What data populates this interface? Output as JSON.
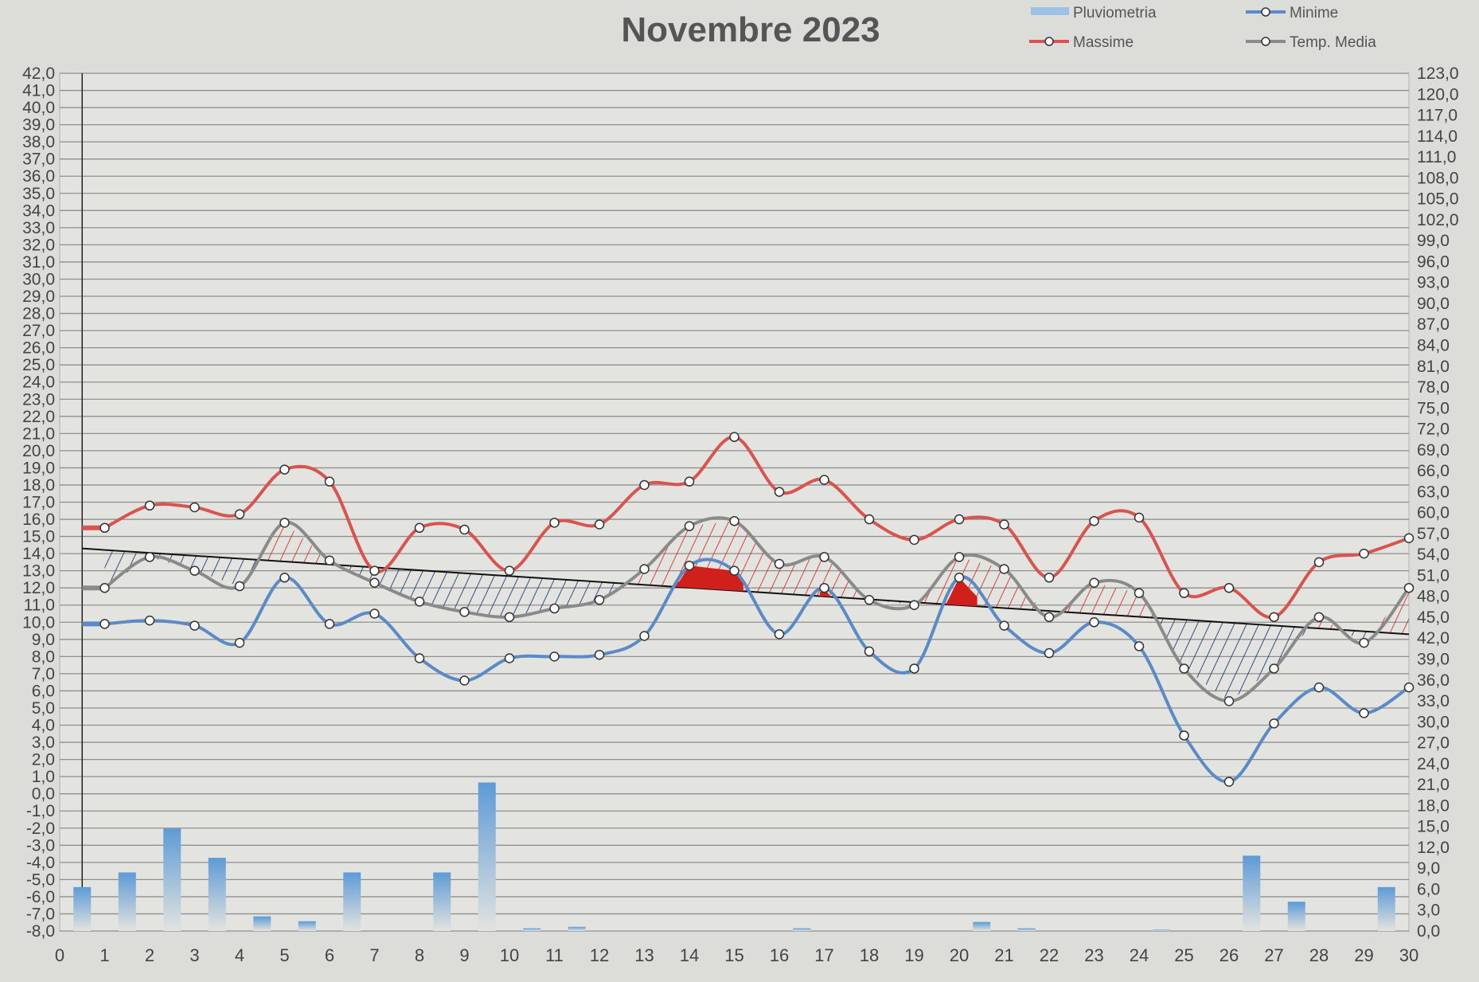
{
  "chart_data": {
    "type": "line",
    "title": "Novembre 2023",
    "x": [
      1,
      2,
      3,
      4,
      5,
      6,
      7,
      8,
      9,
      10,
      11,
      12,
      13,
      14,
      15,
      16,
      17,
      18,
      19,
      20,
      21,
      22,
      23,
      24,
      25,
      26,
      27,
      28,
      29,
      30
    ],
    "xlim": [
      0,
      30
    ],
    "x_ticks": [
      "0",
      "1",
      "2",
      "3",
      "4",
      "5",
      "6",
      "7",
      "8",
      "9",
      "10",
      "11",
      "12",
      "13",
      "14",
      "15",
      "16",
      "17",
      "18",
      "19",
      "20",
      "21",
      "22",
      "23",
      "24",
      "25",
      "26",
      "27",
      "28",
      "29",
      "30"
    ],
    "ylim": [
      -8,
      42
    ],
    "y_ticks": [
      "42,0",
      "41,0",
      "40,0",
      "39,0",
      "38,0",
      "37,0",
      "36,0",
      "35,0",
      "34,0",
      "33,0",
      "32,0",
      "31,0",
      "30,0",
      "29,0",
      "28,0",
      "27,0",
      "26,0",
      "25,0",
      "24,0",
      "23,0",
      "22,0",
      "21,0",
      "20,0",
      "19,0",
      "18,0",
      "17,0",
      "16,0",
      "15,0",
      "14,0",
      "13,0",
      "12,0",
      "11,0",
      "10,0",
      "9,0",
      "8,0",
      "7,0",
      "6,0",
      "5,0",
      "4,0",
      "3,0",
      "2,0",
      "1,0",
      "0,0",
      "-1,0",
      "-2,0",
      "-3,0",
      "-4,0",
      "-5,0",
      "-6,0",
      "-7,0",
      "-8,0"
    ],
    "y2lim": [
      0,
      123
    ],
    "y2_ticks": [
      "123,0",
      "120,0",
      "117,0",
      "114,0",
      "111,0",
      "108,0",
      "105,0",
      "102,0",
      "99,0",
      "96,0",
      "93,0",
      "90,0",
      "87,0",
      "84,0",
      "81,0",
      "78,0",
      "75,0",
      "72,0",
      "69,0",
      "66,0",
      "63,0",
      "60,0",
      "57,0",
      "54,0",
      "51,0",
      "48,0",
      "45,0",
      "42,0",
      "39,0",
      "36,0",
      "33,0",
      "30,0",
      "27,0",
      "24,0",
      "21,0",
      "18,0",
      "15,0",
      "12,0",
      "9,0",
      "6,0",
      "3,0",
      "0,0"
    ],
    "grid": true,
    "legend_position": "top-right",
    "series": [
      {
        "name": "Massime",
        "color": "#d9534f",
        "axis": "left",
        "values": [
          15.5,
          16.8,
          16.7,
          16.3,
          18.9,
          18.2,
          13.0,
          15.5,
          15.4,
          13.0,
          15.8,
          15.7,
          18.0,
          18.2,
          20.8,
          17.6,
          18.3,
          16.0,
          14.8,
          16.0,
          15.7,
          12.6,
          15.9,
          16.1,
          11.7,
          12.0,
          10.3,
          13.5,
          14.0,
          14.9
        ]
      },
      {
        "name": "Minime",
        "color": "#5b8bc7",
        "axis": "left",
        "values": [
          9.9,
          10.1,
          9.8,
          8.8,
          12.6,
          9.9,
          10.5,
          7.9,
          6.6,
          7.9,
          8.0,
          8.1,
          9.2,
          13.3,
          13.0,
          9.3,
          12.0,
          8.3,
          7.3,
          12.6,
          9.8,
          8.2,
          10.0,
          8.6,
          3.4,
          0.7,
          4.1,
          6.2,
          4.7,
          6.2
        ]
      },
      {
        "name": "Temp. Media",
        "color": "#8a8a8a",
        "axis": "left",
        "values": [
          12.0,
          13.8,
          13.0,
          12.1,
          15.8,
          13.6,
          12.3,
          11.2,
          10.6,
          10.3,
          10.8,
          11.3,
          13.1,
          15.6,
          15.9,
          13.4,
          13.8,
          11.3,
          11.0,
          13.8,
          13.1,
          10.3,
          12.3,
          11.7,
          7.3,
          5.4,
          7.3,
          10.3,
          8.8,
          12.0
        ]
      },
      {
        "name": "Pluviometria",
        "color": "#6fa8dc",
        "axis": "right",
        "type": "bar",
        "values": [
          6.3,
          8.4,
          14.7,
          10.5,
          2.1,
          1.4,
          8.4,
          0,
          8.4,
          21.3,
          0.4,
          0.6,
          0,
          0,
          0,
          0,
          0.4,
          0,
          0,
          0,
          1.3,
          0.4,
          0,
          0,
          0.2,
          0,
          10.8,
          4.2,
          0,
          6.3
        ]
      }
    ],
    "trend_line": {
      "from": [
        0.5,
        14.3
      ],
      "to": [
        30,
        9.3
      ]
    },
    "annotations": [
      "Above-trend area of Temp. Media hatched in red",
      "Below-trend area of Temp. Media hatched in blue"
    ]
  },
  "legend": {
    "pluviometria": "Pluviometria",
    "minime": "Minime",
    "massime": "Massime",
    "media": "Temp. Media"
  }
}
